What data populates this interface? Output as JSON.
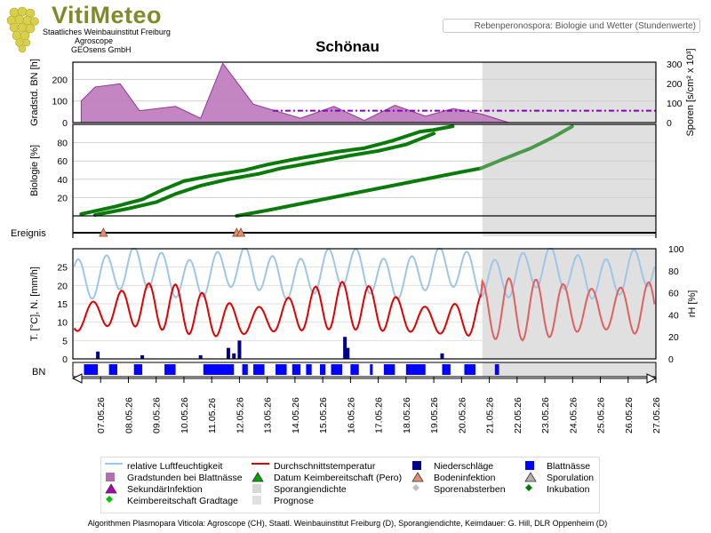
{
  "header": {
    "brand": "VitiMeteo",
    "org_line1": "Staatliches Weinbauinstitut Freiburg",
    "org_line2": "Agroscope",
    "org_line3": "GEOsens GmbH",
    "subtitle": "Rebenperonospora: Biologie und Wetter (Stundenwerte)",
    "title": "Schönau"
  },
  "colors": {
    "purple_area": "#c080c0",
    "purple_line": "#8c2c8c",
    "spore_dash": "#8000c0",
    "green": "#0a7a0a",
    "green_light": "#4a9a4a",
    "temp": "#e00000",
    "temp_forecast": "#e06060",
    "humidity": "#9fc6e8",
    "rain": "#00008a",
    "leafwet": "#0000ff",
    "forecast_shade": "#e0e0e0"
  },
  "chart_data": {
    "type": "line",
    "x_dates": [
      "07.05.26",
      "08.05.26",
      "09.05.26",
      "10.05.26",
      "11.05.26",
      "12.05.26",
      "13.05.26",
      "14.05.26",
      "15.05.26",
      "16.05.26",
      "17.05.26",
      "18.05.26",
      "19.05.26",
      "20.05.26",
      "21.05.26",
      "22.05.26",
      "23.05.26",
      "24.05.26",
      "25.05.26",
      "26.05.26",
      "27.05.26"
    ],
    "forecast_start": "20.05.26 18:00",
    "panels": [
      {
        "name": "gradstunden",
        "ylabel_left": "Gradstd. BN [h]",
        "ylabel_right": "Sporen [s/cm² x 10³]",
        "left_ticks": [
          0,
          100,
          200
        ],
        "right_ticks": [
          0,
          100,
          200,
          300
        ],
        "ylim_left": [
          0,
          280
        ],
        "series": [
          {
            "name": "Gradstunden bei Blattnässe",
            "x": [
              6.3,
              6.8,
              7.7,
              8.4,
              9.7,
              10.6,
              11.4,
              12.5,
              14.2,
              15.4,
              16.5,
              17.6,
              18.7,
              19.7,
              20.7,
              21.7,
              22.4
            ],
            "values": [
              100,
              165,
              180,
              55,
              75,
              20,
              275,
              85,
              20,
              75,
              10,
              80,
              30,
              65,
              40,
              0,
              0
            ]
          },
          {
            "name": "Sporangiendichte",
            "level": 55,
            "from": 13.2,
            "to": 27
          }
        ]
      },
      {
        "name": "biologie",
        "ylabel": "Biologie [%]",
        "ticks": [
          20,
          40,
          60,
          80
        ],
        "ylim": [
          0,
          100
        ],
        "series": [
          {
            "name": "Inkubation A",
            "x": [
              6.3,
              7.5,
              8.5,
              9.2,
              10.0,
              11.0,
              12.2,
              13.0,
              14.0,
              15.5,
              16.5,
              17.5,
              18.5,
              19.0,
              19.7
            ],
            "values": [
              2,
              10,
              18,
              28,
              38,
              44,
              50,
              56,
              62,
              70,
              74,
              82,
              92,
              94,
              98
            ]
          },
          {
            "name": "Inkubation B",
            "x": [
              6.8,
              8.0,
              9.0,
              9.7,
              10.6,
              11.6,
              12.7,
              13.5,
              14.6,
              16.0,
              17.0,
              18.0,
              19.0
            ],
            "values": [
              1,
              8,
              15,
              24,
              33,
              40,
              46,
              52,
              58,
              66,
              71,
              78,
              90
            ]
          },
          {
            "name": "Inkubation C",
            "x": [
              11.9,
              13.0,
              14.0,
              15.0,
              16.0,
              17.0,
              18.0,
              19.0,
              20.0,
              20.7
            ],
            "values": [
              0,
              6,
              12,
              18,
              24,
              30,
              36,
              42,
              48,
              52
            ]
          },
          {
            "name": "Inkubation C Prognose",
            "x": [
              20.7,
              21.5,
              22.5,
              23.3,
              24.0
            ],
            "values": [
              52,
              62,
              74,
              86,
              98
            ]
          }
        ]
      },
      {
        "name": "ereignis",
        "ylabel": "Ereignis",
        "events": [
          {
            "type": "Bodeninfektion",
            "x": 7.1
          },
          {
            "type": "Bodeninfektion",
            "x": 11.9
          },
          {
            "type": "Bodeninfektion",
            "x": 12.05
          }
        ]
      },
      {
        "name": "wetter",
        "ylabel_left": "T. [°C], N. [mm/h]",
        "ylabel_right": "rH [%]",
        "left_ticks": [
          0,
          5,
          10,
          15,
          20,
          25
        ],
        "right_ticks": [
          0,
          20,
          40,
          60,
          80,
          100
        ],
        "ylim_left": [
          0,
          30
        ],
        "ylim_right": [
          0,
          100
        ],
        "temperature_mean": 12.5,
        "temperature_amplitude": 5,
        "humidity_mean": 78,
        "humidity_amplitude": 18,
        "rain": [
          {
            "x": 6.9,
            "v": 2
          },
          {
            "x": 11.6,
            "v": 3
          },
          {
            "x": 11.8,
            "v": 1.5
          },
          {
            "x": 12.0,
            "v": 5
          },
          {
            "x": 15.8,
            "v": 6
          },
          {
            "x": 15.9,
            "v": 3
          },
          {
            "x": 19.3,
            "v": 1.5
          },
          {
            "x": 8.5,
            "v": 1
          },
          {
            "x": 10.6,
            "v": 1
          }
        ]
      },
      {
        "name": "bn",
        "ylabel": "BN",
        "leafwet_days": [
          [
            6.4,
            6.9
          ],
          [
            7.3,
            7.6
          ],
          [
            8.2,
            8.5
          ],
          [
            9.3,
            9.7
          ],
          [
            10.7,
            11.8
          ],
          [
            12.1,
            12.3
          ],
          [
            12.5,
            12.9
          ],
          [
            13.3,
            13.7
          ],
          [
            13.9,
            14.2
          ],
          [
            14.4,
            14.6
          ],
          [
            14.9,
            15.1
          ],
          [
            15.3,
            15.7
          ],
          [
            16.0,
            16.3
          ],
          [
            16.7,
            16.8
          ],
          [
            17.2,
            17.6
          ],
          [
            18.0,
            18.7
          ],
          [
            19.3,
            19.6
          ],
          [
            20.1,
            20.5
          ],
          [
            21.2,
            21.35
          ]
        ]
      }
    ]
  },
  "legend": {
    "items": [
      {
        "label": "relative Luftfeuchtigkeit",
        "sym": "line",
        "color": "#9fc6e8"
      },
      {
        "label": "Durchschnittstemperatur",
        "sym": "line",
        "color": "#e00000"
      },
      {
        "label": "Niederschläge",
        "sym": "square",
        "color": "#00008a"
      },
      {
        "label": "Blattnässe",
        "sym": "square",
        "color": "#0000ff"
      },
      {
        "label": "Gradstunden bei Blattnässe",
        "sym": "square",
        "color": "#b070b0"
      },
      {
        "label": "Datum Keimbereitschaft (Pero)",
        "sym": "triangle",
        "color": "#00a000"
      },
      {
        "label": "Bodeninfektion",
        "sym": "triangle",
        "color": "#e09070"
      },
      {
        "label": "Sporulation",
        "sym": "triangle",
        "color": "#b0b0b0"
      },
      {
        "label": "SekundärInfektion",
        "sym": "triangle",
        "color": "#b000b0"
      },
      {
        "label": "Sporangiendichte",
        "sym": "square",
        "color": "#d8d8d8"
      },
      {
        "label": "Sporenabsterben",
        "sym": "diamond",
        "color": "#c0c0c0"
      },
      {
        "label": "Inkubation",
        "sym": "diamond",
        "color": "#008000"
      },
      {
        "label": "Keimbereitschaft Gradtage",
        "sym": "diamond",
        "color": "#00c000"
      },
      {
        "label": "Prognose",
        "sym": "square",
        "color": "#e0e0e0"
      }
    ]
  },
  "footer": "Algorithmen Plasmopara Viticola: Agroscope (CH), Staatl. Weinbauinstitut Freiburg (D), Sporangiendichte, Keimdauer: G. Hill, DLR Oppenheim (D)"
}
